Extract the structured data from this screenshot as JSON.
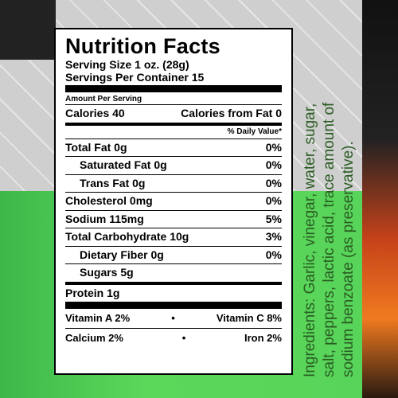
{
  "label": {
    "title": "Nutrition Facts",
    "serving_size": "Serving Size 1 oz. (28g)",
    "servings_per_container": "Servings Per Container 15",
    "amount_per_serving": "Amount Per Serving",
    "calories": "Calories 40",
    "calories_from_fat": "Calories from Fat 0",
    "daily_value_header": "% Daily Value*",
    "rows": [
      [
        "Total Fat  0g",
        "0%"
      ],
      [
        "Saturated Fat  0g",
        "0%"
      ],
      [
        "Trans Fat 0g",
        "0%"
      ],
      [
        "Cholesterol  0mg",
        "0%"
      ],
      [
        "Sodium  115mg",
        "5%"
      ],
      [
        "Total Carbohydrate 10g",
        "3%"
      ],
      [
        "Dietary Fiber 0g",
        "0%"
      ],
      [
        "Sugars  5g",
        ""
      ],
      [
        "Protein 1g",
        ""
      ]
    ],
    "vitamins": [
      [
        "Vitamin A  2%",
        "Vitamin C 8%"
      ],
      [
        "Calcium 2%",
        "Iron 2%"
      ]
    ]
  },
  "ingredients": [
    "Ingredients: Garlic, vinegar, water, sugar,",
    "salt, peppers, lactic acid, trace amount of",
    "sodium benzoate (as preservative)."
  ]
}
